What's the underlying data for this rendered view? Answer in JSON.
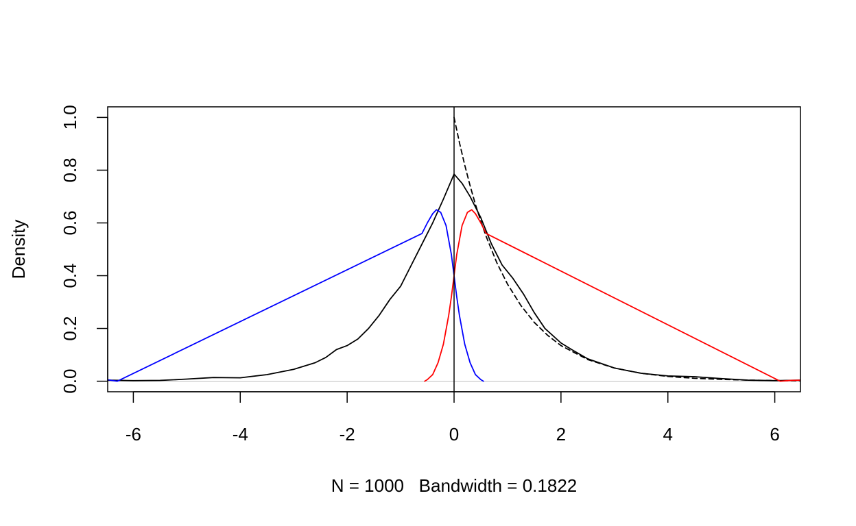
{
  "chart_data": {
    "type": "line",
    "title": "",
    "xlabel": "N = 1000   Bandwidth = 0.1822",
    "ylabel": "Density",
    "xlim": [
      -6.48,
      6.48
    ],
    "ylim": [
      -0.04,
      1.04
    ],
    "x_ticks": [
      -6,
      -4,
      -2,
      0,
      2,
      4,
      6
    ],
    "x_tick_labels": [
      "-6",
      "-4",
      "-2",
      "0",
      "2",
      "4",
      "6"
    ],
    "y_ticks": [
      0.0,
      0.2,
      0.4,
      0.6,
      0.8,
      1.0
    ],
    "y_tick_labels": [
      "0.0",
      "0.2",
      "0.4",
      "0.6",
      "0.8",
      "1.0"
    ],
    "grid": false,
    "legend": "none",
    "baseline": {
      "y": 0,
      "color": "#bebebe"
    },
    "vertical_line": {
      "x": 0,
      "color": "#000000"
    },
    "series": [
      {
        "color": "#000000",
        "dash": "solid",
        "points": [
          [
            -6.5,
            0.004
          ],
          [
            -6.0,
            0.002
          ],
          [
            -5.5,
            0.003
          ],
          [
            -5.0,
            0.008
          ],
          [
            -4.5,
            0.014
          ],
          [
            -4.0,
            0.013
          ],
          [
            -3.5,
            0.025
          ],
          [
            -3.0,
            0.045
          ],
          [
            -2.6,
            0.07
          ],
          [
            -2.4,
            0.09
          ],
          [
            -2.2,
            0.12
          ],
          [
            -2.0,
            0.135
          ],
          [
            -1.8,
            0.16
          ],
          [
            -1.6,
            0.2
          ],
          [
            -1.4,
            0.25
          ],
          [
            -1.2,
            0.31
          ],
          [
            -1.0,
            0.36
          ],
          [
            -0.9,
            0.4
          ],
          [
            -0.8,
            0.44
          ],
          [
            -0.6,
            0.52
          ],
          [
            -0.4,
            0.6
          ],
          [
            -0.2,
            0.69
          ],
          [
            0.0,
            0.785
          ],
          [
            0.15,
            0.75
          ],
          [
            0.3,
            0.7
          ],
          [
            0.5,
            0.62
          ],
          [
            0.7,
            0.52
          ],
          [
            0.9,
            0.44
          ],
          [
            1.1,
            0.39
          ],
          [
            1.3,
            0.33
          ],
          [
            1.5,
            0.26
          ],
          [
            1.7,
            0.2
          ],
          [
            2.0,
            0.145
          ],
          [
            2.2,
            0.12
          ],
          [
            2.5,
            0.085
          ],
          [
            3.0,
            0.05
          ],
          [
            3.5,
            0.03
          ],
          [
            4.0,
            0.02
          ],
          [
            4.5,
            0.017
          ],
          [
            5.0,
            0.01
          ],
          [
            5.5,
            0.004
          ],
          [
            6.0,
            0.002
          ],
          [
            6.5,
            0.004
          ]
        ]
      },
      {
        "color": "#000000",
        "dash": "dashed",
        "points": [
          [
            0.0,
            1.0
          ],
          [
            0.1,
            0.905
          ],
          [
            0.2,
            0.819
          ],
          [
            0.3,
            0.741
          ],
          [
            0.4,
            0.67
          ],
          [
            0.5,
            0.607
          ],
          [
            0.6,
            0.549
          ],
          [
            0.8,
            0.449
          ],
          [
            1.0,
            0.368
          ],
          [
            1.25,
            0.287
          ],
          [
            1.5,
            0.223
          ],
          [
            1.75,
            0.174
          ],
          [
            2.0,
            0.135
          ],
          [
            2.5,
            0.082
          ],
          [
            3.0,
            0.05
          ],
          [
            3.5,
            0.03
          ],
          [
            4.0,
            0.018
          ],
          [
            4.5,
            0.011
          ],
          [
            5.0,
            0.007
          ],
          [
            5.5,
            0.004
          ],
          [
            6.0,
            0.0025
          ],
          [
            6.5,
            0.0015
          ]
        ]
      },
      {
        "color": "#0000ff",
        "dash": "solid",
        "points": [
          [
            -6.5,
            0.006
          ],
          [
            -6.3,
            0.0
          ],
          [
            -0.6,
            0.56
          ],
          [
            -0.5,
            0.6
          ],
          [
            -0.4,
            0.635
          ],
          [
            -0.33,
            0.65
          ],
          [
            -0.25,
            0.64
          ],
          [
            -0.15,
            0.59
          ],
          [
            -0.05,
            0.48
          ],
          [
            0.0,
            0.4
          ],
          [
            0.05,
            0.32
          ],
          [
            0.1,
            0.25
          ],
          [
            0.2,
            0.14
          ],
          [
            0.3,
            0.07
          ],
          [
            0.4,
            0.025
          ],
          [
            0.5,
            0.006
          ],
          [
            0.55,
            0.0
          ]
        ]
      },
      {
        "color": "#ff0000",
        "dash": "solid",
        "points": [
          [
            -0.55,
            0.0
          ],
          [
            -0.5,
            0.006
          ],
          [
            -0.4,
            0.025
          ],
          [
            -0.3,
            0.07
          ],
          [
            -0.2,
            0.14
          ],
          [
            -0.1,
            0.25
          ],
          [
            -0.05,
            0.32
          ],
          [
            0.0,
            0.4
          ],
          [
            0.05,
            0.48
          ],
          [
            0.15,
            0.59
          ],
          [
            0.25,
            0.64
          ],
          [
            0.33,
            0.65
          ],
          [
            0.4,
            0.635
          ],
          [
            0.5,
            0.6
          ],
          [
            0.6,
            0.56
          ],
          [
            6.1,
            0.0
          ],
          [
            6.3,
            0.003
          ],
          [
            6.5,
            0.004
          ]
        ]
      }
    ]
  }
}
